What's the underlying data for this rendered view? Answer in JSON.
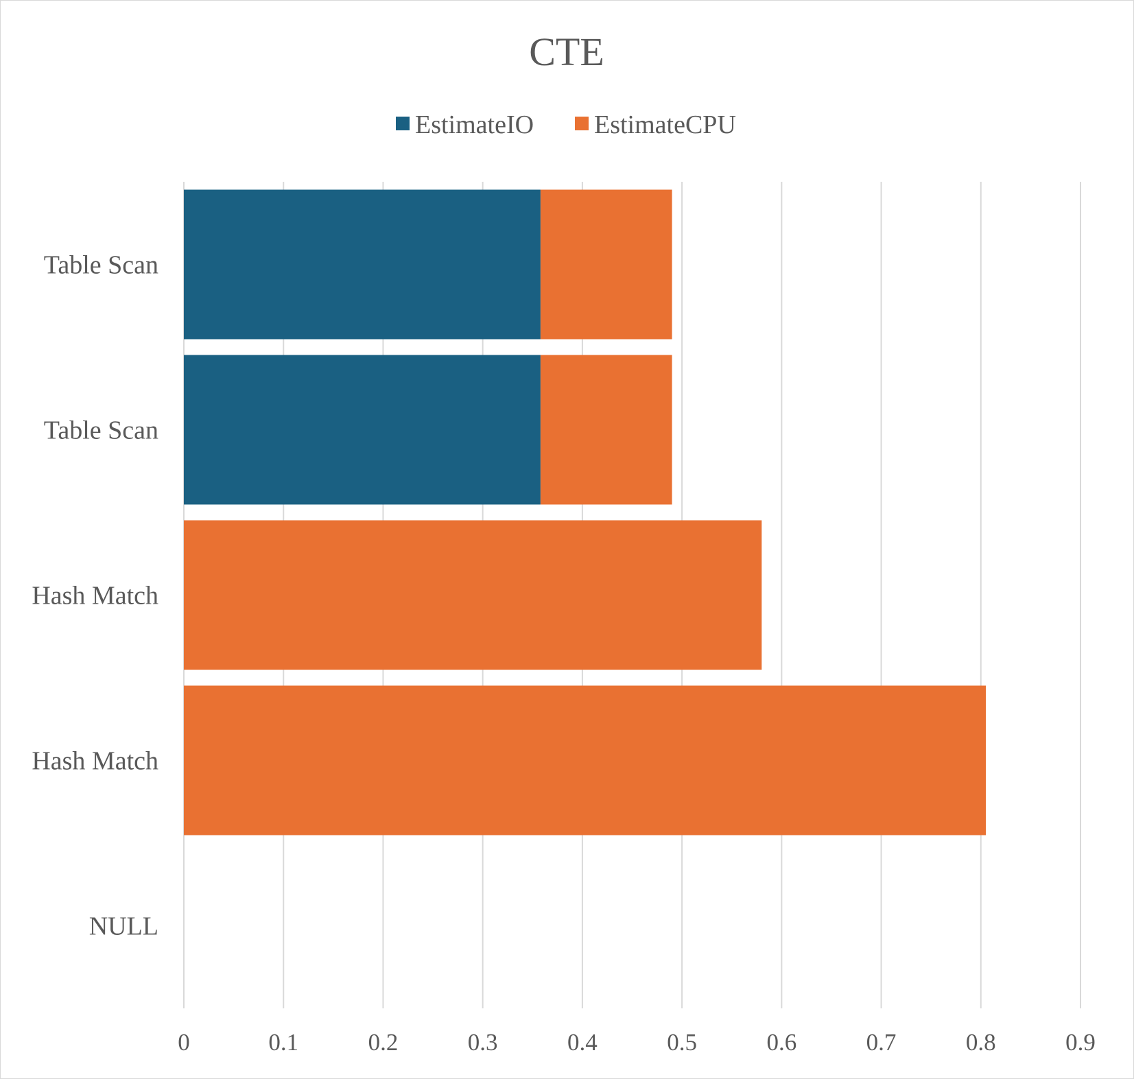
{
  "chart_data": {
    "type": "bar",
    "orientation": "horizontal",
    "stacked": true,
    "title": "CTE",
    "categories": [
      "Table Scan",
      "Table Scan",
      "Hash Match",
      "Hash Match",
      "NULL"
    ],
    "series": [
      {
        "name": "EstimateIO",
        "color": "#1a6082",
        "values": [
          0.358,
          0.358,
          0,
          0,
          0
        ]
      },
      {
        "name": "EstimateCPU",
        "color": "#e97132",
        "values": [
          0.132,
          0.132,
          0.58,
          0.805,
          0
        ]
      }
    ],
    "xlim": [
      0,
      0.9
    ],
    "xticks": [
      "0",
      "0.1",
      "0.2",
      "0.3",
      "0.4",
      "0.5",
      "0.6",
      "0.7",
      "0.8",
      "0.9"
    ],
    "grid": "vertical",
    "legend_position": "top"
  }
}
